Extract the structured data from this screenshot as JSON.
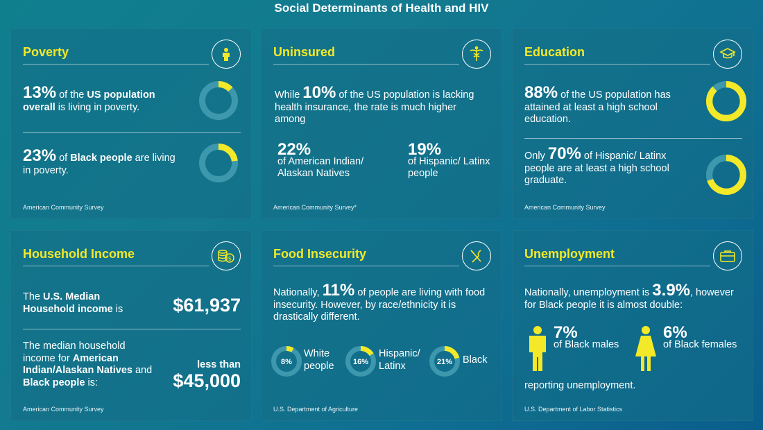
{
  "title": "Social Determinants of Health and HIV",
  "colors": {
    "accent": "#f3e928",
    "ring": "#3d97ad",
    "text": "#ffffff"
  },
  "poverty": {
    "title": "Poverty",
    "icon": "person-icon",
    "stat1": {
      "value": "13%",
      "pre": "",
      "mid": " of the ",
      "bold": "US population overall",
      "post": " is living in poverty.",
      "fraction": 0.13
    },
    "stat2": {
      "value": "23%",
      "mid": " of ",
      "bold": "Black people",
      "post": " are living in poverty.",
      "fraction": 0.23
    },
    "source": "American Community Survey"
  },
  "uninsured": {
    "title": "Uninsured",
    "icon": "caduceus-icon",
    "intro_pre": "While ",
    "intro_value": "10%",
    "intro_post": " of the US population is lacking health insurance, the rate is much higher among",
    "stat1": {
      "value": "22%",
      "label": "of American Indian/ Alaskan Natives"
    },
    "stat2": {
      "value": "19%",
      "label": "of Hispanic/ Latinx people"
    },
    "source": "American Community Survey*"
  },
  "education": {
    "title": "Education",
    "icon": "graduation-cap-icon",
    "stat1": {
      "value": "88%",
      "post": " of the US population has attained at least a high school education.",
      "fraction": 0.88
    },
    "stat2": {
      "pre": "Only ",
      "value": "70%",
      "post": " of Hispanic/ Latinx people are at least a high school graduate.",
      "fraction": 0.7
    },
    "source": "American Community Survey"
  },
  "income": {
    "title": "Household Income",
    "icon": "coins-icon",
    "line1_pre": "The ",
    "line1_bold": "U.S. Median Household income",
    "line1_post": " is",
    "median": "$61,937",
    "line2_pre": "The median household income for ",
    "line2_bold1": "American Indian/Alaskan Natives",
    "line2_mid": " and ",
    "line2_bold2": "Black people",
    "line2_post": " is:",
    "less_than": "less than",
    "amount2": "$45,000",
    "source": "American Community Survey"
  },
  "food": {
    "title": "Food Insecurity",
    "icon": "fork-knife-icon",
    "text_pre": "Nationally, ",
    "value": "11%",
    "text_post": " of people are living with food insecurity. However, by race/ethnicity it is drastically different.",
    "groups": [
      {
        "pct": "8%",
        "label1": "White",
        "label2": "people",
        "fraction": 0.08
      },
      {
        "pct": "16%",
        "label1": "Hispanic/",
        "label2": "Latinx",
        "fraction": 0.16
      },
      {
        "pct": "21%",
        "label1": "Black",
        "label2": "",
        "fraction": 0.21
      }
    ],
    "source": "U.S. Department of Agriculture"
  },
  "unemployment": {
    "title": "Unemployment",
    "icon": "briefcase-icon",
    "text_pre": "Nationally, unemployment is ",
    "value": "3.9%",
    "text_post": ", however for Black people it is almost double:",
    "male": {
      "value": "7%",
      "label": "of Black males"
    },
    "female": {
      "value": "6%",
      "label": "of Black females"
    },
    "footer": "reporting unemployment.",
    "source": "U.S. Department of Labor Statistics"
  }
}
